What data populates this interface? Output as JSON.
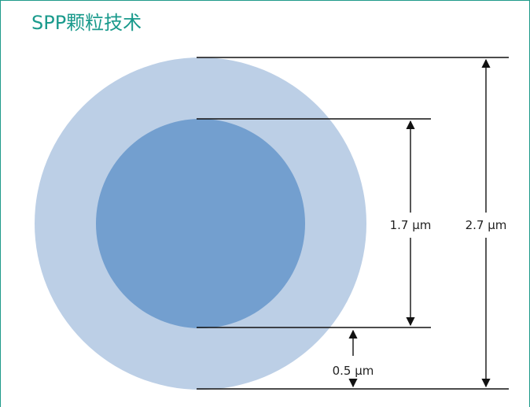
{
  "title": "SPP颗粒技术",
  "colors": {
    "title": "#1a9a8c",
    "frame": "#1f9a8a",
    "shell": "#bccfe6",
    "core": "#739fcf",
    "lines": "#111111",
    "label": "#222222"
  },
  "particle": {
    "total_diameter_label": "2.7 µm",
    "core_diameter_label": "1.7 µm",
    "shell_thickness_label": "0.5 µm"
  }
}
